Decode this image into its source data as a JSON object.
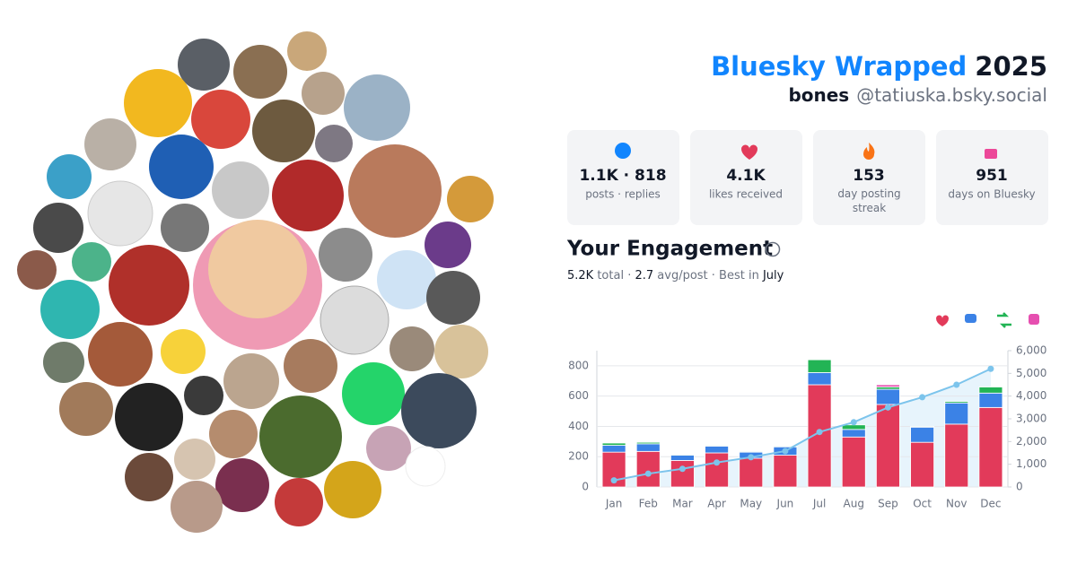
{
  "header": {
    "title": "Bluesky Wrapped",
    "year": "2025",
    "name": "bones",
    "handle": "@tatiuska.bsky.social"
  },
  "stats": [
    {
      "value": "1.1K · 818",
      "label": "posts · replies"
    },
    {
      "value": "4.1K",
      "label": "likes received"
    },
    {
      "value": "153",
      "label": "day posting streak"
    },
    {
      "value": "951",
      "label": "days on Bluesky"
    }
  ],
  "engagement": {
    "title": "Your Engagement",
    "summary": [
      "5.2K",
      " total · ",
      "2.7",
      " avg/post · Best in ",
      "July"
    ]
  },
  "chart_data": {
    "type": "bar",
    "stacked": true,
    "categories": [
      "Jan",
      "Feb",
      "Mar",
      "Apr",
      "May",
      "Jun",
      "Jul",
      "Aug",
      "Sep",
      "Oct",
      "Nov",
      "Dec"
    ],
    "series": [
      {
        "color": "#e23a5a",
        "values": [
          230,
          235,
          175,
          225,
          190,
          210,
          675,
          330,
          545,
          295,
          415,
          525
        ]
      },
      {
        "color": "#3b82e6",
        "values": [
          45,
          50,
          35,
          45,
          40,
          55,
          80,
          50,
          100,
          100,
          140,
          95
        ]
      },
      {
        "color": "#22b455",
        "values": [
          15,
          10,
          5,
          5,
          5,
          5,
          85,
          30,
          15,
          5,
          10,
          40
        ]
      },
      {
        "color": "#e64fb0",
        "values": [
          0,
          0,
          0,
          0,
          0,
          0,
          0,
          0,
          15,
          0,
          0,
          0
        ]
      },
      {
        "type": "line",
        "axis": "y2",
        "color": "#7cc4ec",
        "values": [
          290,
          585,
          800,
          1075,
          1310,
          1580,
          2420,
          2850,
          3500,
          3950,
          4500,
          5200
        ]
      }
    ],
    "ylim": [
      0,
      900
    ],
    "yticks": [
      0,
      200,
      400,
      600,
      800
    ],
    "y2lim": [
      0,
      6000
    ],
    "y2ticks": [
      0,
      {
        "value": 1000,
        "label": "1,000"
      },
      {
        "value": 2000,
        "label": "2,000"
      },
      {
        "value": 3000,
        "label": "3,000"
      },
      {
        "value": 4000,
        "label": "4,000"
      },
      {
        "value": 5000,
        "label": "5,000"
      },
      {
        "value": 6000,
        "label": "6,000"
      }
    ],
    "grid": true
  }
}
